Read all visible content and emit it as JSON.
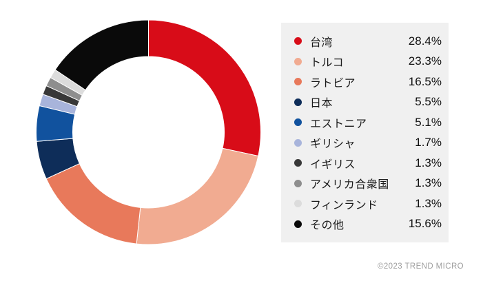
{
  "chart_data": {
    "type": "pie",
    "subtype": "donut",
    "title": "",
    "unit": "%",
    "categories": [
      "台湾",
      "トルコ",
      "ラトビア",
      "日本",
      "エストニア",
      "ギリシャ",
      "イギリス",
      "アメリカ合衆国",
      "フィンランド",
      "その他"
    ],
    "values": [
      28.4,
      23.3,
      16.5,
      5.5,
      5.1,
      1.7,
      1.3,
      1.3,
      1.3,
      15.6
    ],
    "keys": [
      "taiwan",
      "turkey",
      "latvia",
      "japan",
      "estonia",
      "greece",
      "uk",
      "usa",
      "finland",
      "other"
    ],
    "colors": [
      "#d80c18",
      "#f1ab91",
      "#e8795b",
      "#0e2d59",
      "#11529e",
      "#a8b4db",
      "#383838",
      "#8e8e8e",
      "#dcdcdc",
      "#0a0a0a"
    ],
    "start_angle_deg": -90,
    "clockwise": true,
    "inner_radius_ratio": 0.675,
    "legend_position": "right",
    "grid": false
  },
  "legend": {
    "background": "#f0f0f0",
    "items": [
      {
        "label": "台湾",
        "percent": "28.4%",
        "color": "#d80c18"
      },
      {
        "label": "トルコ",
        "percent": "23.3%",
        "color": "#f1ab91"
      },
      {
        "label": "ラトビア",
        "percent": "16.5%",
        "color": "#e8795b"
      },
      {
        "label": "日本",
        "percent": "5.5%",
        "color": "#0e2d59"
      },
      {
        "label": "エストニア",
        "percent": "5.1%",
        "color": "#11529e"
      },
      {
        "label": "ギリシャ",
        "percent": "1.7%",
        "color": "#a8b4db"
      },
      {
        "label": "イギリス",
        "percent": "1.3%",
        "color": "#383838"
      },
      {
        "label": "アメリカ合衆国",
        "percent": "1.3%",
        "color": "#8e8e8e"
      },
      {
        "label": "フィンランド",
        "percent": "1.3%",
        "color": "#dcdcdc"
      },
      {
        "label": "その他",
        "percent": "15.6%",
        "color": "#0a0a0a"
      }
    ]
  },
  "footer": {
    "copyright": "©2023 TREND MICRO"
  }
}
